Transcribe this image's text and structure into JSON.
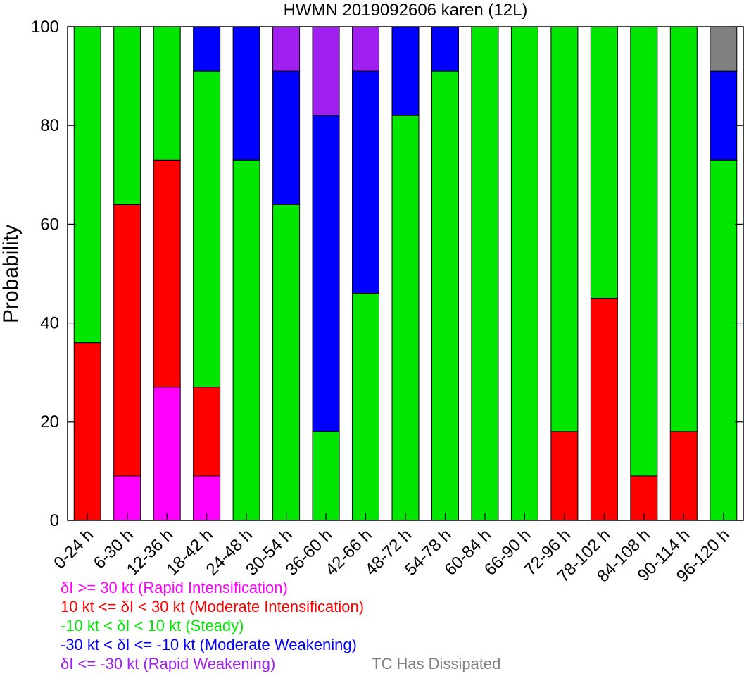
{
  "chart_data": {
    "type": "bar",
    "stacked": true,
    "title": "HWMN 2019092606 karen (12L)",
    "xlabel": "",
    "ylabel": "Probability",
    "ylim": [
      0,
      100
    ],
    "yticks": [
      0,
      20,
      40,
      60,
      80,
      100
    ],
    "grid": false,
    "categories": [
      "0-24 h",
      "6-30 h",
      "12-36 h",
      "18-42 h",
      "24-48 h",
      "30-54 h",
      "36-60 h",
      "42-66 h",
      "48-72 h",
      "54-78 h",
      "60-84 h",
      "66-90 h",
      "72-96 h",
      "78-102 h",
      "84-108 h",
      "90-114 h",
      "96-120 h"
    ],
    "series": [
      {
        "name": "δI >= 30 kt (Rapid Intensification)",
        "color": "#ff00ff",
        "values": [
          0,
          9,
          27,
          9,
          0,
          0,
          0,
          0,
          0,
          0,
          0,
          0,
          0,
          0,
          0,
          0,
          0
        ]
      },
      {
        "name": "10 kt <= δI < 30 kt (Moderate Intensification)",
        "color": "#ff0000",
        "values": [
          36,
          55,
          46,
          18,
          0,
          0,
          0,
          0,
          0,
          0,
          0,
          0,
          18,
          45,
          9,
          18,
          0
        ]
      },
      {
        "name": "-10 kt < δI < 10 kt (Steady)",
        "color": "#00e600",
        "values": [
          64,
          36,
          27,
          64,
          73,
          64,
          18,
          46,
          82,
          91,
          100,
          100,
          82,
          55,
          91,
          82,
          73
        ]
      },
      {
        "name": "-30 kt < δI <= -10 kt (Moderate Weakening)",
        "color": "#0000ff",
        "values": [
          0,
          0,
          0,
          9,
          27,
          27,
          64,
          45,
          18,
          9,
          0,
          0,
          0,
          0,
          0,
          0,
          18
        ]
      },
      {
        "name": "δI <= -30 kt (Rapid Weakening)",
        "color": "#a020f0",
        "values": [
          0,
          0,
          0,
          0,
          0,
          9,
          18,
          9,
          0,
          0,
          0,
          0,
          0,
          0,
          0,
          0,
          0
        ]
      },
      {
        "name": "TC Has Dissipated",
        "color": "#808080",
        "values": [
          0,
          0,
          0,
          0,
          0,
          0,
          0,
          0,
          0,
          0,
          0,
          0,
          0,
          0,
          0,
          0,
          9
        ]
      }
    ],
    "legend_placement": "bottom-left"
  }
}
